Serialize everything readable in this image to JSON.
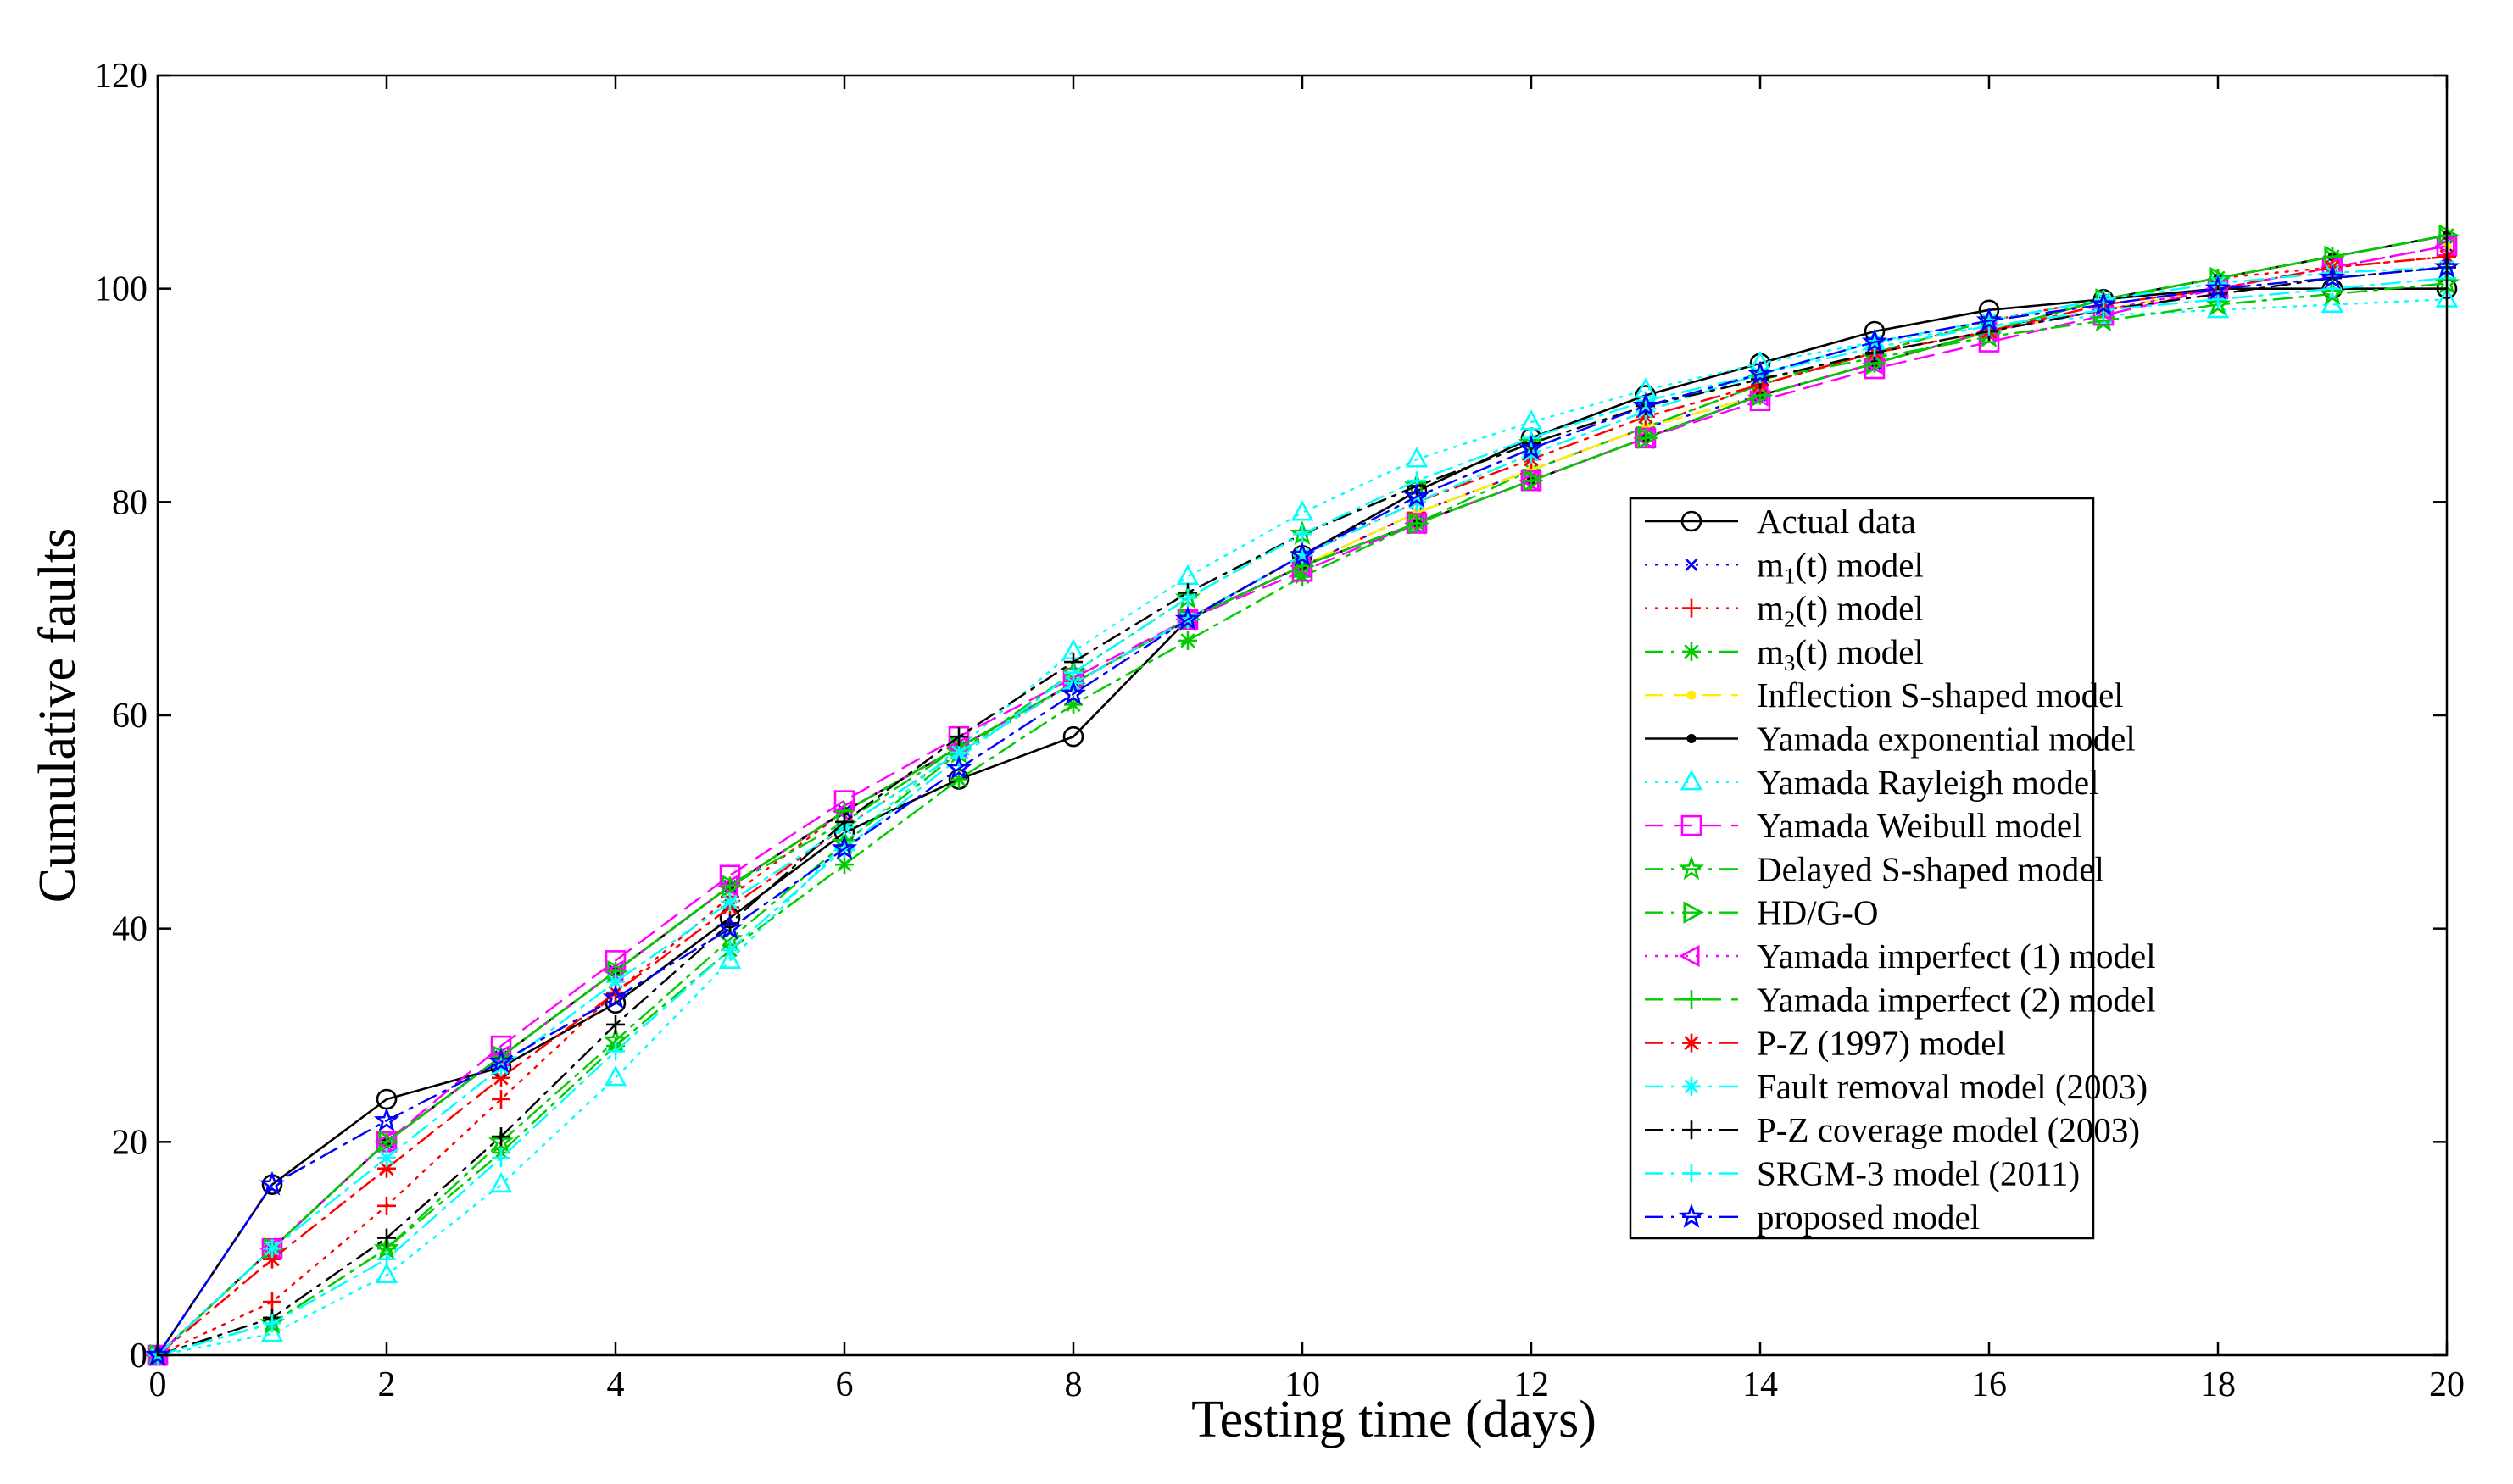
{
  "chart_data": {
    "type": "line",
    "xlabel": "Testing time (days)",
    "ylabel": "Cumulative faults",
    "xlim": [
      0,
      20
    ],
    "ylim": [
      0,
      120
    ],
    "x_ticks": [
      0,
      2,
      4,
      6,
      8,
      10,
      12,
      14,
      16,
      18,
      20
    ],
    "y_ticks": [
      0,
      20,
      40,
      60,
      80,
      100,
      120
    ],
    "x_tick_labels": [
      "0",
      "2",
      "4",
      "6",
      "8",
      "10",
      "12",
      "14",
      "16",
      "18",
      "20"
    ],
    "y_tick_labels": [
      "0",
      "20",
      "40",
      "60",
      "80",
      "100",
      "120"
    ],
    "grid": false,
    "legend_position": "center-right",
    "x": [
      0,
      1,
      2,
      3,
      4,
      5,
      6,
      7,
      8,
      9,
      10,
      11,
      12,
      13,
      14,
      15,
      16,
      17,
      18,
      19,
      20
    ],
    "series": [
      {
        "name": "Actual data",
        "legend_label": "Actual data",
        "legend_sub": "",
        "legend_rest": "",
        "color": "#000000",
        "dash": "solid",
        "marker": "circle",
        "values": [
          0,
          16,
          24,
          27,
          33,
          41,
          49,
          54,
          58,
          69,
          75,
          81,
          86,
          90,
          93,
          96,
          98,
          99,
          100,
          100,
          100
        ]
      },
      {
        "name": "m1(t) model",
        "legend_label": "m",
        "legend_sub": "1",
        "legend_rest": "(t) model",
        "color": "#0000ff",
        "dash": "dot",
        "marker": "x",
        "values": [
          0,
          10,
          20,
          28,
          36,
          44,
          51,
          57,
          63,
          69,
          74,
          79,
          83,
          87,
          90,
          93,
          96,
          98,
          100,
          102,
          104
        ]
      },
      {
        "name": "m2(t) model",
        "legend_label": "m",
        "legend_sub": "2",
        "legend_rest": "(t) model",
        "color": "#ff0000",
        "dash": "dot",
        "marker": "plus",
        "values": [
          0,
          5,
          14,
          24,
          34,
          43,
          51,
          57,
          63,
          69,
          74,
          79,
          83,
          87,
          91,
          94,
          97,
          99,
          101,
          102,
          103
        ]
      },
      {
        "name": "m3(t) model",
        "legend_label": "m",
        "legend_sub": "3",
        "legend_rest": "(t) model",
        "color": "#00cc00",
        "dash": "dashdot",
        "marker": "asterisk",
        "values": [
          0,
          3,
          10,
          19,
          29,
          38,
          46,
          54,
          61,
          67,
          73,
          78,
          83,
          87,
          91,
          94,
          97,
          99,
          101,
          103,
          105
        ]
      },
      {
        "name": "Inflection S-shaped model",
        "legend_label": "Inflection S-shaped model",
        "legend_sub": "",
        "legend_rest": "",
        "color": "#ffee00",
        "dash": "dash",
        "marker": "dot",
        "values": [
          0,
          10,
          20,
          28,
          36,
          44,
          51,
          57,
          63,
          69,
          74,
          79,
          83,
          87,
          90,
          93,
          96,
          98,
          100,
          102,
          104
        ]
      },
      {
        "name": "Yamada exponential model",
        "legend_label": "Yamada exponential model",
        "legend_sub": "",
        "legend_rest": "",
        "color": "#000000",
        "dash": "solid",
        "marker": "dot",
        "values": [
          0,
          10,
          20,
          28,
          36,
          44,
          51,
          57,
          63,
          69,
          74,
          78,
          82,
          86,
          90,
          93,
          96,
          99,
          101,
          103,
          105
        ]
      },
      {
        "name": "Yamada Rayleigh model",
        "legend_label": "Yamada Rayleigh model",
        "legend_sub": "",
        "legend_rest": "",
        "color": "#00ffff",
        "dash": "dot",
        "marker": "triangle",
        "values": [
          0,
          2,
          7.5,
          16,
          26,
          37,
          48,
          57,
          66,
          73,
          79,
          84,
          87.5,
          90.5,
          93,
          95,
          96.5,
          97.5,
          98,
          98.5,
          99
        ]
      },
      {
        "name": "Yamada Weibull model",
        "legend_label": "Yamada Weibull model",
        "legend_sub": "",
        "legend_rest": "",
        "color": "#ff00ff",
        "dash": "dash",
        "marker": "square",
        "values": [
          0,
          10,
          20,
          29,
          37,
          45,
          52,
          58,
          63.5,
          69,
          73.5,
          78,
          82,
          86,
          89.5,
          92.5,
          95,
          97.5,
          100,
          102,
          104
        ]
      },
      {
        "name": "Delayed S-shaped model",
        "legend_label": "Delayed S-shaped model",
        "legend_sub": "",
        "legend_rest": "",
        "color": "#00cc00",
        "dash": "dashdot",
        "marker": "star",
        "values": [
          0,
          3,
          10,
          20,
          29.5,
          39,
          48,
          56.5,
          64,
          71,
          77,
          81.5,
          85.5,
          89,
          91.5,
          93.5,
          95.5,
          97,
          98.5,
          99.5,
          100.5
        ]
      },
      {
        "name": "HD/G-O",
        "legend_label": "HD/G-O",
        "legend_sub": "",
        "legend_rest": "",
        "color": "#00cc00",
        "dash": "dashdot",
        "marker": "triangle-right",
        "values": [
          0,
          10,
          20,
          28,
          36,
          44,
          50,
          57,
          63,
          69,
          74,
          78,
          82,
          86,
          90,
          93,
          96,
          99,
          101,
          103,
          105
        ]
      },
      {
        "name": "Yamada imperfect (1) model",
        "legend_label": "Yamada imperfect (1) model",
        "legend_sub": "",
        "legend_rest": "",
        "color": "#ff00ff",
        "dash": "dot",
        "marker": "triangle-left",
        "values": [
          0,
          10,
          20,
          28,
          36,
          44,
          51,
          57,
          63,
          69,
          74,
          78,
          82,
          86,
          90,
          93,
          96,
          98,
          100,
          102,
          104
        ]
      },
      {
        "name": "Yamada imperfect (2) model",
        "legend_label": "Yamada imperfect (2) model",
        "legend_sub": "",
        "legend_rest": "",
        "color": "#00cc00",
        "dash": "dash",
        "marker": "plus",
        "values": [
          0,
          10,
          20,
          28,
          36,
          44,
          51,
          57,
          63,
          69,
          74,
          78,
          82,
          86,
          90,
          93,
          96,
          99,
          101,
          103,
          105
        ]
      },
      {
        "name": "P-Z (1997) model",
        "legend_label": "P-Z (1997) model",
        "legend_sub": "",
        "legend_rest": "",
        "color": "#ff0000",
        "dash": "dashdot",
        "marker": "asterisk",
        "values": [
          0,
          9,
          17.5,
          26,
          34,
          42,
          49.5,
          56.5,
          63,
          69,
          75,
          80,
          84,
          88,
          91,
          94,
          96,
          98.5,
          100,
          102,
          103
        ]
      },
      {
        "name": "Fault removal model (2003)",
        "legend_label": "Fault removal model (2003)",
        "legend_sub": "",
        "legend_rest": "",
        "color": "#00ffff",
        "dash": "dashdot",
        "marker": "asterisk",
        "values": [
          0,
          10,
          18.5,
          27,
          35,
          42.5,
          49.5,
          56.5,
          63,
          69,
          75,
          80,
          84.5,
          88.5,
          92,
          95,
          97,
          99,
          100.5,
          101.5,
          102
        ]
      },
      {
        "name": "P-Z coverage model (2003)",
        "legend_label": "P-Z coverage model (2003)",
        "legend_sub": "",
        "legend_rest": "",
        "color": "#000000",
        "dash": "dashdot",
        "marker": "plus",
        "values": [
          0,
          3.5,
          11,
          20.5,
          31,
          40.5,
          50,
          58,
          65,
          71.5,
          77,
          81.5,
          85.5,
          89,
          91.5,
          94,
          96,
          98,
          99.5,
          101,
          102
        ]
      },
      {
        "name": "SRGM-3 model (2011)",
        "legend_label": "SRGM-3 model (2011)",
        "legend_sub": "",
        "legend_rest": "",
        "color": "#00ffff",
        "dash": "dashdot",
        "marker": "plus",
        "values": [
          0,
          3,
          9,
          18.5,
          28.5,
          38,
          47.5,
          56,
          64,
          71,
          77,
          82,
          86,
          89.5,
          92,
          94.5,
          96.5,
          98,
          99,
          100,
          101
        ]
      },
      {
        "name": "proposed model",
        "legend_label": "proposed model",
        "legend_sub": "",
        "legend_rest": "",
        "color": "#0000ff",
        "dash": "dashdot",
        "marker": "star",
        "values": [
          0,
          16,
          22,
          27.5,
          33.5,
          40,
          47.5,
          55,
          62,
          69,
          75,
          80.5,
          85,
          89,
          92,
          95,
          97,
          98.5,
          100,
          101,
          102
        ]
      }
    ]
  }
}
